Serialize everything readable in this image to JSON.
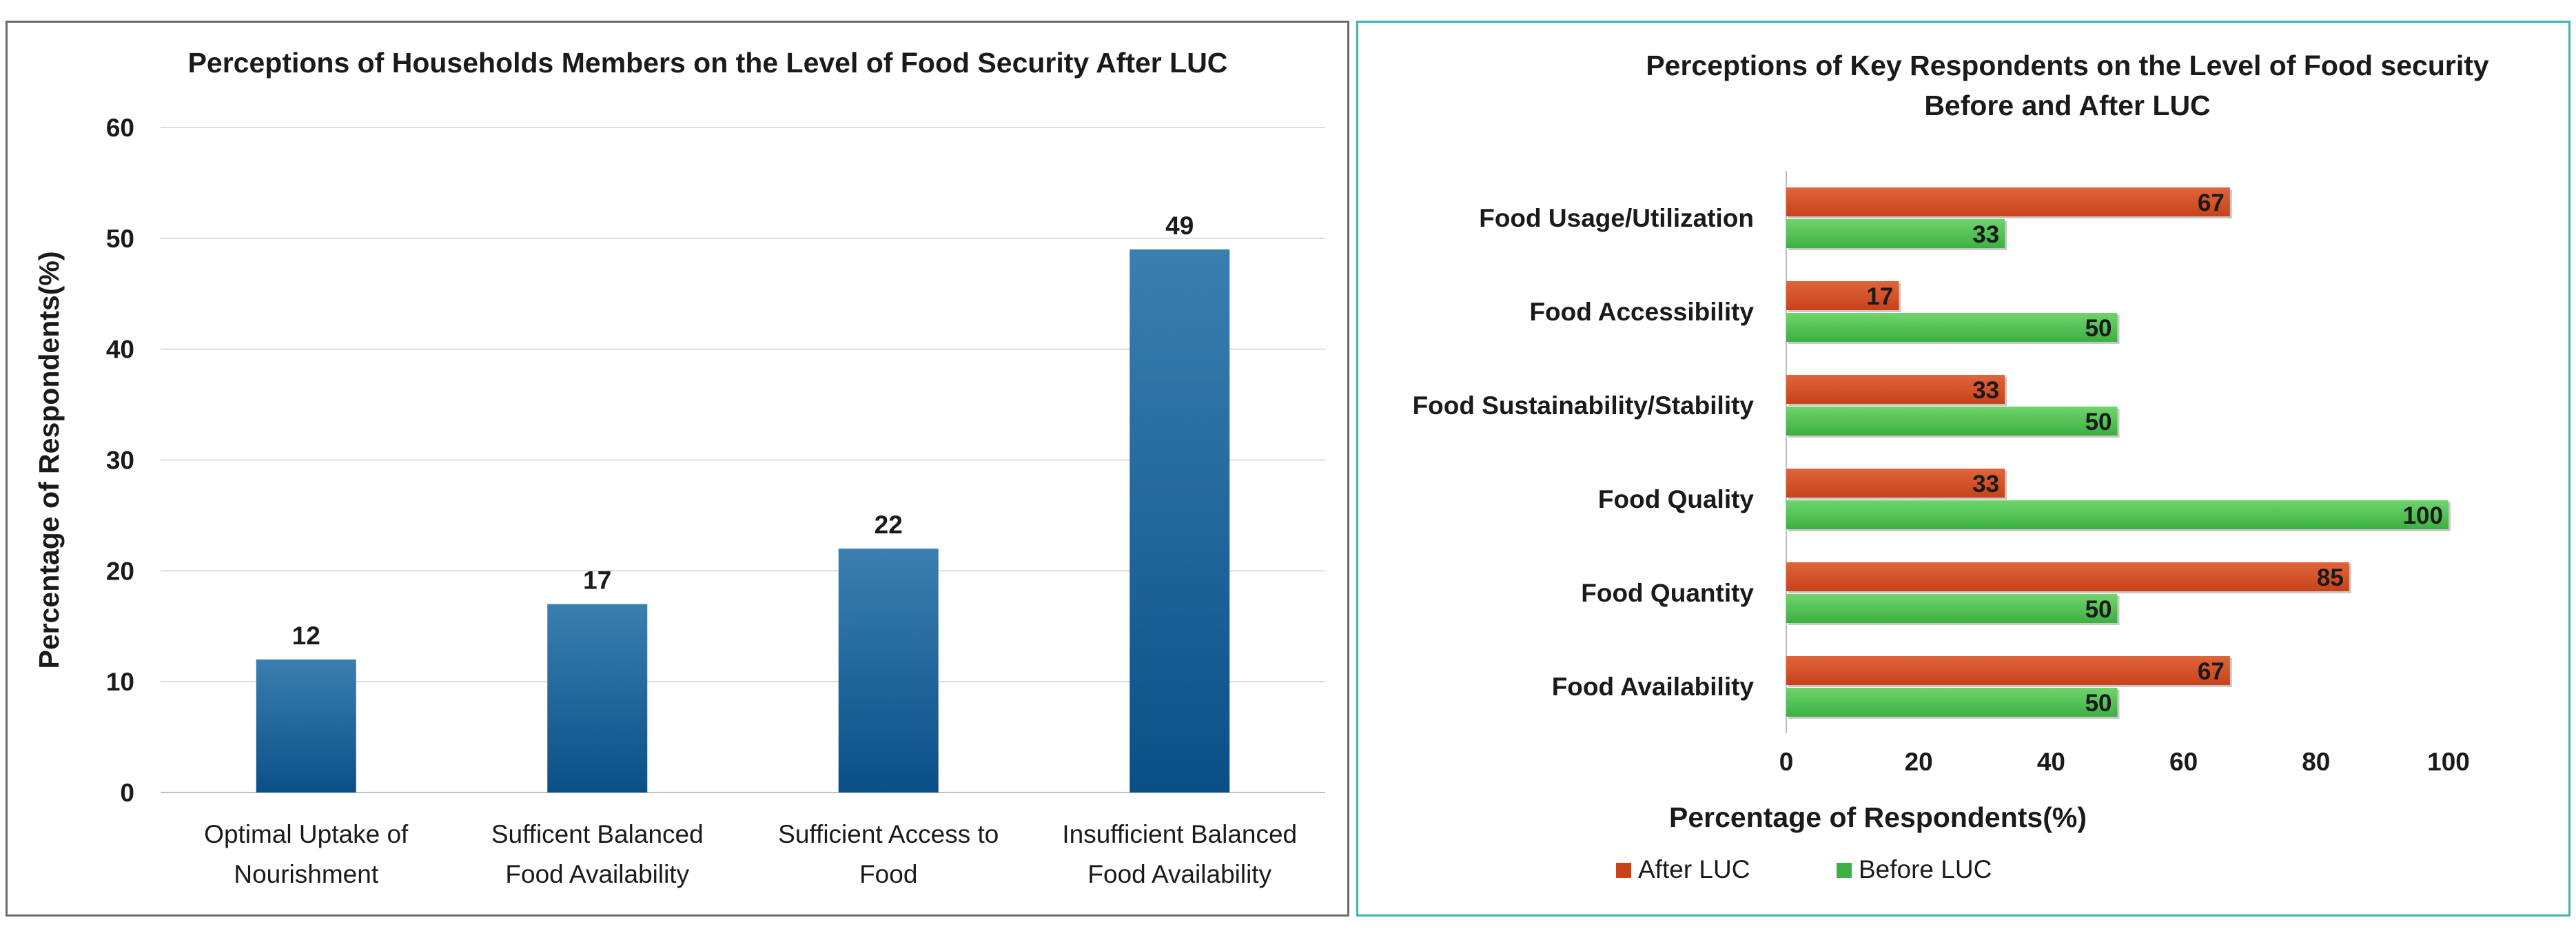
{
  "chart_data": [
    {
      "type": "bar",
      "title": "Perceptions of Households Members on the Level of Food Security After LUC",
      "ylabel": "Percentage of Respondents(%)",
      "xlabel": "",
      "categories": [
        [
          "Optimal Uptake of",
          "Nourishment"
        ],
        [
          "Sufficent Balanced",
          "Food Availability"
        ],
        [
          "Sufficient Access to",
          "Food"
        ],
        [
          "Insufficient Balanced",
          "Food Availability"
        ]
      ],
      "values": [
        12,
        17,
        22,
        49
      ],
      "ylim": [
        0,
        60
      ],
      "yticks": [
        0,
        10,
        20,
        30,
        40,
        50,
        60
      ],
      "grid": true,
      "colors": {
        "bar_top": "#3b7fb0",
        "bar_bottom": "#0a4f87",
        "grid": "#dcdcdc"
      }
    },
    {
      "type": "bar",
      "orientation": "horizontal",
      "title": [
        "Perceptions of Key Respondents on the Level of Food security",
        "Before and After LUC"
      ],
      "xlabel": "Percentage of Respondents(%)",
      "ylabel": "",
      "categories": [
        "Food Usage/Utilization",
        "Food Accessibility",
        "Food Sustainability/Stability",
        "Food Quality",
        "Food Quantity",
        "Food Availability"
      ],
      "series": [
        {
          "name": "After LUC",
          "values": [
            67,
            17,
            33,
            33,
            85,
            67
          ],
          "color": "#c8421a",
          "color_light": "#e0653a"
        },
        {
          "name": "Before LUC",
          "values": [
            33,
            50,
            50,
            100,
            50,
            50
          ],
          "color": "#3cb043",
          "color_light": "#6fd46b"
        }
      ],
      "xlim": [
        0,
        100
      ],
      "xticks": [
        0,
        20,
        40,
        60,
        80,
        100
      ],
      "legend": "bottom-center"
    }
  ]
}
